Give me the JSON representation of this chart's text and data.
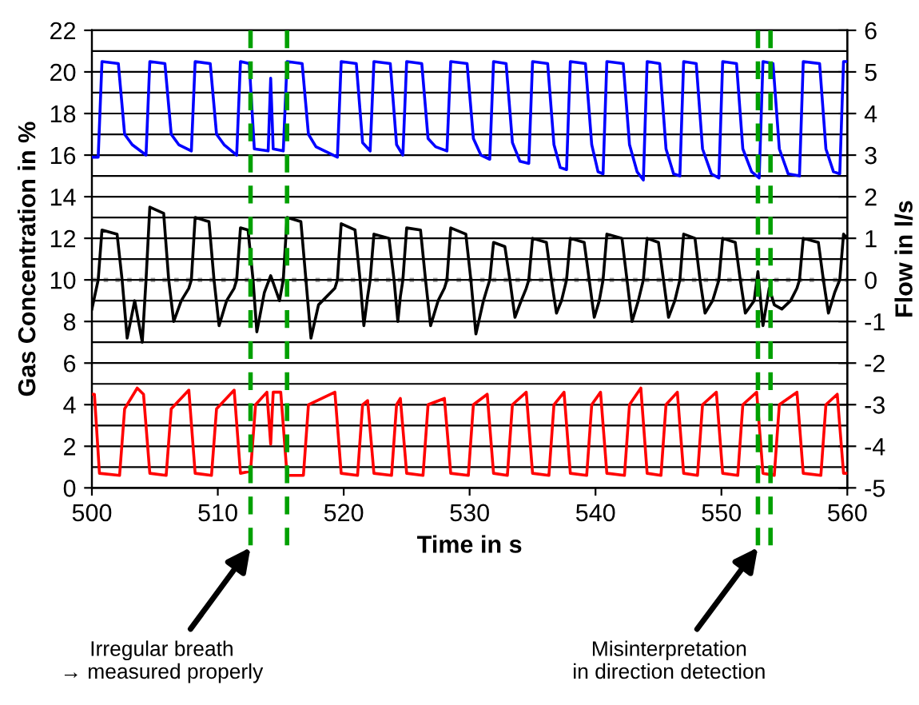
{
  "chart_data": {
    "type": "line",
    "xlabel": "Time in s",
    "ylabel": "Gas Concentration in %",
    "y2label": "Flow in l/s",
    "xlim": [
      500,
      560
    ],
    "xticks": [
      500,
      510,
      520,
      530,
      540,
      550,
      560
    ],
    "ylim": [
      0,
      22
    ],
    "yticks": [
      0,
      2,
      4,
      6,
      8,
      10,
      12,
      14,
      16,
      18,
      20,
      22
    ],
    "y2lim": [
      -5,
      6
    ],
    "y2ticks": [
      -5,
      -4,
      -3,
      -2,
      -1,
      0,
      1,
      2,
      3,
      4,
      5,
      6
    ],
    "grid": "y",
    "legend": false,
    "marker": "none",
    "line_style": "solid",
    "series": [
      {
        "color": "#0000ff",
        "x": [
          500,
          500.5,
          500.8,
          502.1,
          502.6,
          503.2,
          504.3,
          504.6,
          505.8,
          506.3,
          506.9,
          507.9,
          508.2,
          509.4,
          509.9,
          510.5,
          511.5,
          511.8,
          512.5,
          512.9,
          514.0,
          514.2,
          514.4,
          515.2,
          515.5,
          516.7,
          517.2,
          517.8,
          519.5,
          519.8,
          521.0,
          521.5,
          522.1,
          522.4,
          523.7,
          524.2,
          524.7,
          525.0,
          526.2,
          526.7,
          527.3,
          528.2,
          528.5,
          529.8,
          530.3,
          530.9,
          531.6,
          531.9,
          532.9,
          533.4,
          534.0,
          534.7,
          535.0,
          536.2,
          536.7,
          537.2,
          537.7,
          538.0,
          539.2,
          539.7,
          540.2,
          540.6,
          540.9,
          542.2,
          542.7,
          543.3,
          543.8,
          544.1,
          545.1,
          545.6,
          546.2,
          546.7,
          547.0,
          548.0,
          548.5,
          549.2,
          549.8,
          550.1,
          551.2,
          551.7,
          552.4,
          553.0,
          553.3,
          554.1,
          554.6,
          555.3,
          556.2,
          556.5,
          557.8,
          558.3,
          558.9,
          559.4,
          559.7,
          560
        ],
        "values": [
          15.9,
          15.9,
          20.5,
          20.4,
          17.0,
          16.5,
          16.0,
          20.5,
          20.4,
          17.0,
          16.5,
          16.2,
          20.5,
          20.4,
          17.0,
          16.5,
          16.0,
          20.5,
          20.4,
          16.3,
          16.2,
          19.7,
          16.3,
          16.2,
          20.5,
          20.4,
          17.0,
          16.4,
          15.9,
          20.5,
          20.4,
          16.6,
          16.2,
          20.5,
          20.4,
          16.5,
          16.0,
          20.5,
          20.4,
          16.8,
          16.4,
          16.2,
          20.5,
          20.4,
          16.8,
          16.0,
          15.8,
          20.5,
          20.4,
          16.6,
          15.7,
          15.6,
          20.5,
          20.4,
          16.5,
          15.4,
          15.3,
          20.5,
          20.4,
          16.5,
          15.2,
          15.1,
          20.5,
          20.4,
          16.5,
          15.2,
          14.8,
          20.5,
          20.4,
          16.3,
          15.1,
          15.0,
          20.5,
          20.4,
          16.3,
          15.1,
          14.9,
          20.5,
          20.4,
          16.3,
          15.2,
          14.9,
          20.5,
          20.4,
          16.3,
          15.1,
          15.0,
          20.5,
          20.4,
          16.3,
          15.2,
          15.1,
          20.5,
          20.5
        ]
      },
      {
        "color": "#000000",
        "axis": "y2",
        "x": [
          500,
          500.5,
          500.8,
          502.0,
          502.4,
          502.8,
          503.4,
          504.0,
          504.3,
          504.6,
          505.7,
          506.1,
          506.5,
          507.1,
          507.7,
          507.9,
          508.2,
          509.3,
          509.7,
          510.1,
          510.7,
          511.3,
          511.5,
          511.8,
          512.4,
          512.8,
          513.1,
          513.7,
          514.2,
          514.9,
          515.2,
          515.5,
          516.6,
          517.0,
          517.4,
          518.0,
          519.3,
          519.5,
          519.8,
          520.9,
          521.3,
          521.6,
          521.9,
          522.1,
          522.4,
          523.6,
          524.0,
          524.3,
          524.5,
          524.7,
          525.0,
          526.1,
          526.5,
          526.9,
          527.5,
          528.0,
          528.2,
          528.5,
          529.7,
          530.1,
          530.5,
          531.1,
          531.4,
          531.6,
          531.9,
          532.8,
          533.2,
          533.6,
          534.1,
          534.5,
          534.7,
          535.0,
          536.1,
          536.5,
          536.9,
          537.3,
          537.7,
          538.0,
          539.1,
          539.5,
          539.9,
          540.3,
          540.6,
          540.9,
          542.1,
          542.5,
          542.9,
          543.4,
          543.8,
          544.1,
          545.0,
          545.4,
          545.8,
          546.3,
          546.7,
          547.0,
          547.9,
          548.3,
          548.7,
          549.3,
          549.8,
          550.1,
          551.1,
          551.5,
          551.9,
          552.6,
          552.9,
          553.3,
          553.8,
          554.2,
          554.8,
          555.5,
          556.0,
          556.2,
          556.5,
          557.7,
          558.1,
          558.5,
          559.0,
          559.4,
          559.7,
          560
        ],
        "values": [
          -0.7,
          0,
          1.2,
          1.1,
          0,
          -1.4,
          -0.5,
          -1.5,
          0,
          1.75,
          1.6,
          0,
          -1.0,
          -0.5,
          -0.2,
          0,
          1.5,
          1.4,
          0,
          -1.1,
          -0.5,
          -0.2,
          0,
          1.25,
          1.2,
          0,
          -1.25,
          -0.3,
          0.1,
          -0.5,
          0,
          1.5,
          1.4,
          0,
          -1.4,
          -0.6,
          -0.2,
          0,
          1.35,
          1.2,
          0,
          -1.1,
          -0.4,
          0,
          1.1,
          1.0,
          0,
          -1.0,
          -0.4,
          0,
          1.25,
          1.2,
          0,
          -1.1,
          -0.5,
          -0.2,
          0,
          1.25,
          1.1,
          0,
          -1.3,
          -0.5,
          -0.2,
          0,
          0.9,
          0.8,
          0,
          -0.9,
          -0.5,
          -0.2,
          0,
          1.0,
          0.9,
          0,
          -0.8,
          -0.5,
          0,
          1.0,
          0.9,
          0,
          -0.9,
          -0.5,
          0,
          1.1,
          1.0,
          0,
          -1.0,
          -0.5,
          0,
          1.0,
          0.9,
          0,
          -0.9,
          -0.5,
          0,
          1.1,
          1.0,
          0,
          -0.8,
          -0.5,
          0,
          1.0,
          0.9,
          0,
          -0.8,
          -0.5,
          0.2,
          -1.1,
          -0.2,
          -0.6,
          -0.7,
          -0.5,
          -0.2,
          0,
          1.0,
          0.9,
          0,
          -0.8,
          -0.3,
          0,
          1.1,
          1.0
        ]
      },
      {
        "color": "#ff0000",
        "x": [
          500,
          500.2,
          500.6,
          502.2,
          502.6,
          503.6,
          504.1,
          504.6,
          505.9,
          506.3,
          507.7,
          508.2,
          509.5,
          509.9,
          511.3,
          511.8,
          512.6,
          513.0,
          513.9,
          514.2,
          514.4,
          515.0,
          515.5,
          516.8,
          517.2,
          519.3,
          519.8,
          521.1,
          521.5,
          521.9,
          522.4,
          523.8,
          524.2,
          524.5,
          525.0,
          526.3,
          526.7,
          528.0,
          528.5,
          529.9,
          530.3,
          531.4,
          531.9,
          533.0,
          533.4,
          534.5,
          535.0,
          536.3,
          536.7,
          537.5,
          538.0,
          539.3,
          539.7,
          540.4,
          540.9,
          542.3,
          542.7,
          543.6,
          544.1,
          545.2,
          545.6,
          546.5,
          547.0,
          548.1,
          548.5,
          549.6,
          550.1,
          551.3,
          551.7,
          552.8,
          553.3,
          554.2,
          554.6,
          556.0,
          556.5,
          557.9,
          558.3,
          559.2,
          559.7,
          560
        ],
        "values": [
          4.5,
          4.5,
          0.7,
          0.6,
          3.8,
          4.8,
          4.5,
          0.7,
          0.6,
          3.8,
          4.7,
          0.7,
          0.6,
          3.8,
          4.7,
          0.7,
          0.8,
          4.0,
          4.6,
          2.1,
          4.6,
          4.6,
          0.6,
          0.6,
          4.0,
          4.6,
          0.7,
          0.6,
          4.0,
          4.2,
          0.7,
          0.6,
          4.0,
          4.3,
          0.7,
          0.6,
          4.0,
          4.3,
          0.7,
          0.6,
          4.0,
          4.5,
          0.7,
          0.6,
          4.0,
          4.6,
          0.7,
          0.6,
          4.0,
          4.6,
          0.7,
          0.6,
          4.0,
          4.6,
          0.7,
          0.6,
          4.0,
          4.8,
          0.7,
          0.6,
          4.0,
          4.6,
          0.7,
          0.6,
          4.0,
          4.6,
          0.7,
          0.6,
          4.0,
          4.6,
          0.7,
          0.6,
          4.0,
          4.6,
          0.7,
          0.6,
          4.0,
          4.5,
          0.7,
          0.7
        ]
      }
    ],
    "ref_lines": [
      {
        "axis": "y2",
        "value": 0,
        "color": "#a0a0a0",
        "line_style": "dotted"
      },
      {
        "axis": "x",
        "value": 512.6,
        "color": "#00a000",
        "line_style": "dashed"
      },
      {
        "axis": "x",
        "value": 515.5,
        "color": "#00a000",
        "line_style": "dashed"
      },
      {
        "axis": "x",
        "value": 552.9,
        "color": "#00a000",
        "line_style": "dashed"
      },
      {
        "axis": "x",
        "value": 553.9,
        "color": "#00a000",
        "line_style": "dashed"
      }
    ],
    "annotations": [
      "Irregular breath\n→ measured properly",
      "Misinterpretation\nin direction detection"
    ]
  }
}
